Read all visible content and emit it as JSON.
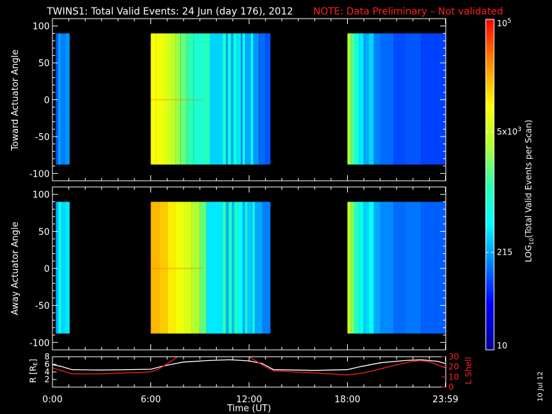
{
  "header": {
    "title": "TWINS1: Total Valid Events: 24 Jun (day 176), 2012",
    "note": "NOTE: Data Preliminary – Not validated"
  },
  "footer": {
    "date_stamp": "10 Jul 12"
  },
  "colors": {
    "background": "#000000",
    "axes": "#ffffff",
    "note": "#ff2020",
    "r_line": "#ffffff",
    "lshell_line": "#ff2020"
  },
  "chart_data": [
    {
      "type": "heatmap",
      "title": "",
      "ylabel": "Toward Actuator Angle",
      "ylim": [
        -110,
        110
      ],
      "yticks": [
        "100",
        "50",
        "0",
        "-50",
        "-100"
      ],
      "ytick_values": [
        100,
        50,
        0,
        -50,
        -100
      ],
      "xlim_hours": [
        0,
        24
      ],
      "xticks": [
        "0:00",
        "6:00",
        "12:00",
        "18:00",
        "23:59"
      ],
      "angle_range": [
        -88,
        90
      ],
      "columns": [
        {
          "t": [
            0.2,
            0.35
          ],
          "v": 0.22
        },
        {
          "t": [
            0.35,
            0.5
          ],
          "v": 0.3
        },
        {
          "t": [
            0.5,
            0.8
          ],
          "v": 0.26
        },
        {
          "t": [
            0.8,
            1.05
          ],
          "v": 0.28
        },
        {
          "t": [
            6.0,
            6.3
          ],
          "v": 0.74
        },
        {
          "t": [
            6.3,
            6.8
          ],
          "v": 0.72
        },
        {
          "t": [
            6.8,
            7.2
          ],
          "v": 0.68
        },
        {
          "t": [
            7.2,
            7.5
          ],
          "v": 0.64
        },
        {
          "t": [
            7.5,
            7.8
          ],
          "v": 0.6
        },
        {
          "t": [
            7.8,
            8.2
          ],
          "v": 0.55
        },
        {
          "t": [
            8.2,
            8.6
          ],
          "v": 0.5
        },
        {
          "t": [
            8.6,
            9.2
          ],
          "v": 0.45
        },
        {
          "t": [
            9.2,
            9.6
          ],
          "v": 0.48
        },
        {
          "t": [
            9.6,
            10.4
          ],
          "v": 0.34
        },
        {
          "t": [
            10.4,
            10.6
          ],
          "v": 0.46
        },
        {
          "t": [
            10.6,
            10.7
          ],
          "v": 0.28
        },
        {
          "t": [
            10.7,
            10.9
          ],
          "v": 0.43
        },
        {
          "t": [
            10.9,
            11.05
          ],
          "v": 0.3
        },
        {
          "t": [
            11.05,
            11.25
          ],
          "v": 0.44
        },
        {
          "t": [
            11.25,
            11.5
          ],
          "v": 0.36
        },
        {
          "t": [
            11.5,
            11.6
          ],
          "v": 0.27
        },
        {
          "t": [
            11.6,
            11.75
          ],
          "v": 0.42
        },
        {
          "t": [
            11.75,
            12.1
          ],
          "v": 0.3
        },
        {
          "t": [
            12.1,
            12.25
          ],
          "v": 0.4
        },
        {
          "t": [
            12.25,
            12.6
          ],
          "v": 0.28
        },
        {
          "t": [
            12.6,
            13.0
          ],
          "v": 0.24
        },
        {
          "t": [
            13.0,
            13.3
          ],
          "v": 0.22
        },
        {
          "t": [
            18.0,
            18.2
          ],
          "v": 0.62
        },
        {
          "t": [
            18.2,
            18.4
          ],
          "v": 0.54
        },
        {
          "t": [
            18.4,
            18.7
          ],
          "v": 0.44
        },
        {
          "t": [
            18.7,
            19.0
          ],
          "v": 0.36
        },
        {
          "t": [
            19.0,
            19.3
          ],
          "v": 0.3
        },
        {
          "t": [
            19.3,
            19.6
          ],
          "v": 0.34
        },
        {
          "t": [
            19.6,
            20.0
          ],
          "v": 0.26
        },
        {
          "t": [
            20.0,
            20.8
          ],
          "v": 0.24
        },
        {
          "t": [
            20.8,
            21.5
          ],
          "v": 0.21
        },
        {
          "t": [
            21.5,
            22.5
          ],
          "v": 0.22
        },
        {
          "t": [
            22.5,
            23.98
          ],
          "v": 0.2
        }
      ]
    },
    {
      "type": "heatmap",
      "title": "",
      "ylabel": "Away Actuator Angle",
      "ylim": [
        -110,
        110
      ],
      "yticks": [
        "100",
        "50",
        "0",
        "-50",
        "-100"
      ],
      "ytick_values": [
        100,
        50,
        0,
        -50,
        -100
      ],
      "xlim_hours": [
        0,
        24
      ],
      "xticks": [
        "0:00",
        "6:00",
        "12:00",
        "18:00",
        "23:59"
      ],
      "angle_range": [
        -88,
        90
      ],
      "columns": [
        {
          "t": [
            0.2,
            0.35
          ],
          "v": 0.3
        },
        {
          "t": [
            0.35,
            0.55
          ],
          "v": 0.4
        },
        {
          "t": [
            0.55,
            0.8
          ],
          "v": 0.34
        },
        {
          "t": [
            0.8,
            1.05
          ],
          "v": 0.36
        },
        {
          "t": [
            6.0,
            6.5
          ],
          "v": 0.82
        },
        {
          "t": [
            6.5,
            7.0
          ],
          "v": 0.8
        },
        {
          "t": [
            7.0,
            7.5
          ],
          "v": 0.76
        },
        {
          "t": [
            7.5,
            8.0
          ],
          "v": 0.72
        },
        {
          "t": [
            8.0,
            8.5
          ],
          "v": 0.68
        },
        {
          "t": [
            8.5,
            9.0
          ],
          "v": 0.62
        },
        {
          "t": [
            9.0,
            9.4
          ],
          "v": 0.55
        },
        {
          "t": [
            9.4,
            10.4
          ],
          "v": 0.36
        },
        {
          "t": [
            10.4,
            10.6
          ],
          "v": 0.5
        },
        {
          "t": [
            10.6,
            10.75
          ],
          "v": 0.3
        },
        {
          "t": [
            10.75,
            10.95
          ],
          "v": 0.46
        },
        {
          "t": [
            10.95,
            11.1
          ],
          "v": 0.32
        },
        {
          "t": [
            11.1,
            11.3
          ],
          "v": 0.48
        },
        {
          "t": [
            11.3,
            11.6
          ],
          "v": 0.38
        },
        {
          "t": [
            11.6,
            11.75
          ],
          "v": 0.3
        },
        {
          "t": [
            11.75,
            11.9
          ],
          "v": 0.44
        },
        {
          "t": [
            11.9,
            12.2
          ],
          "v": 0.33
        },
        {
          "t": [
            12.2,
            12.35
          ],
          "v": 0.42
        },
        {
          "t": [
            12.35,
            12.8
          ],
          "v": 0.3
        },
        {
          "t": [
            12.8,
            13.3
          ],
          "v": 0.26
        },
        {
          "t": [
            18.0,
            18.2
          ],
          "v": 0.66
        },
        {
          "t": [
            18.2,
            18.4
          ],
          "v": 0.58
        },
        {
          "t": [
            18.4,
            18.7
          ],
          "v": 0.48
        },
        {
          "t": [
            18.7,
            19.0
          ],
          "v": 0.4
        },
        {
          "t": [
            19.0,
            19.3
          ],
          "v": 0.34
        },
        {
          "t": [
            19.3,
            19.6
          ],
          "v": 0.38
        },
        {
          "t": [
            19.6,
            20.0
          ],
          "v": 0.3
        },
        {
          "t": [
            20.0,
            20.8
          ],
          "v": 0.27
        },
        {
          "t": [
            20.8,
            21.5
          ],
          "v": 0.24
        },
        {
          "t": [
            21.5,
            22.5
          ],
          "v": 0.25
        },
        {
          "t": [
            22.5,
            23.98
          ],
          "v": 0.23
        }
      ]
    },
    {
      "type": "line",
      "title": "",
      "xlabel": "Time (UT)",
      "xlim_hours": [
        0,
        24
      ],
      "xticks": [
        "0:00",
        "6:00",
        "12:00",
        "18:00",
        "23:59"
      ],
      "ylabel_left": "R [R",
      "ylabel_left_sub": "E",
      "ylabel_left_end": "]",
      "yticks_left": [
        "8",
        "6",
        "4",
        "2"
      ],
      "ylim_left": [
        0,
        8
      ],
      "ylabel_right": "L Shell",
      "yticks_right": [
        "30",
        "20",
        "10",
        "0"
      ],
      "ylim_right": [
        0,
        30
      ],
      "series": [
        {
          "axis": "left",
          "color": "#ffffff",
          "points": [
            [
              0,
              5.9
            ],
            [
              0.5,
              5.5
            ],
            [
              1.2,
              4.6
            ],
            [
              3,
              4.5
            ],
            [
              6,
              4.7
            ],
            [
              6.8,
              5.6
            ],
            [
              8,
              6.6
            ],
            [
              9.5,
              7.0
            ],
            [
              10.8,
              7.2
            ],
            [
              12,
              6.9
            ],
            [
              12.8,
              6.2
            ],
            [
              13.5,
              4.6
            ],
            [
              16,
              4.4
            ],
            [
              18,
              4.6
            ],
            [
              18.8,
              5.4
            ],
            [
              20,
              6.4
            ],
            [
              21.5,
              7.0
            ],
            [
              22.5,
              7.2
            ],
            [
              23.5,
              6.8
            ],
            [
              23.98,
              6.2
            ]
          ]
        },
        {
          "axis": "right",
          "color": "#ff2020",
          "points": [
            [
              0,
              19
            ],
            [
              0.6,
              16
            ],
            [
              1.2,
              13
            ],
            [
              3,
              13
            ],
            [
              6,
              15
            ],
            [
              6.5,
              18
            ],
            [
              7.2,
              25
            ],
            [
              7.8,
              32
            ],
            [
              11.8,
              32
            ],
            [
              12.3,
              27
            ],
            [
              13,
              20
            ],
            [
              13.5,
              16
            ],
            [
              16,
              14
            ],
            [
              18,
              12
            ],
            [
              19,
              14
            ],
            [
              20,
              18
            ],
            [
              21,
              22
            ],
            [
              22,
              25.5
            ],
            [
              22.5,
              26
            ],
            [
              23,
              25
            ],
            [
              23.98,
              19
            ]
          ]
        }
      ]
    }
  ],
  "colorbar": {
    "label_main": "LOG",
    "label_sub": "10",
    "label_rest": "(Total Valid  Events per Scan)",
    "ticks": [
      {
        "frac": 1.0,
        "label": "10",
        "sup": "5"
      },
      {
        "frac": 0.66,
        "label": "5x10",
        "sup": "3"
      },
      {
        "frac": 0.295,
        "label": "215",
        "sup": ""
      },
      {
        "frac": 0.0,
        "label": "10",
        "sup": ""
      }
    ]
  }
}
